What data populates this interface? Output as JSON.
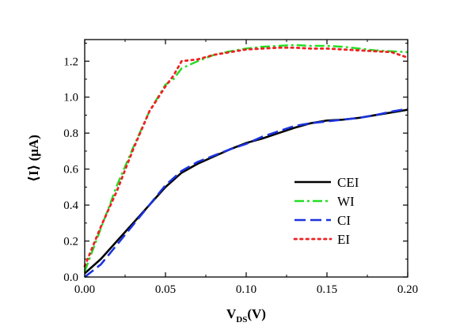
{
  "chart_data": {
    "type": "line",
    "xlabel_main": "V",
    "xlabel_sub": "DS",
    "xlabel_unit": "(V)",
    "ylabel": "⟨I⟩ (μA)",
    "xlim": [
      0.0,
      0.2
    ],
    "ylim": [
      0.0,
      1.32
    ],
    "x_ticks": [
      0.0,
      0.05,
      0.1,
      0.15,
      0.2
    ],
    "x_tick_labels": [
      "0.00",
      "0.05",
      "0.10",
      "0.15",
      "0.20"
    ],
    "y_ticks": [
      0.0,
      0.2,
      0.4,
      0.6,
      0.8,
      1.0,
      1.2
    ],
    "y_tick_labels": [
      "0.0",
      "0.2",
      "0.4",
      "0.6",
      "0.8",
      "1.0",
      "1.2"
    ],
    "legend_position": "center-right",
    "series": [
      {
        "name": "CEI",
        "color": "#000000",
        "style": "solid",
        "x": [
          0.0,
          0.01,
          0.02,
          0.03,
          0.04,
          0.05,
          0.06,
          0.07,
          0.08,
          0.09,
          0.1,
          0.11,
          0.12,
          0.13,
          0.14,
          0.15,
          0.16,
          0.17,
          0.18,
          0.19,
          0.2
        ],
        "y": [
          0.02,
          0.1,
          0.2,
          0.3,
          0.4,
          0.5,
          0.58,
          0.63,
          0.67,
          0.71,
          0.745,
          0.77,
          0.8,
          0.83,
          0.855,
          0.87,
          0.875,
          0.885,
          0.9,
          0.915,
          0.93
        ]
      },
      {
        "name": "WI",
        "color": "#22dd22",
        "style": "dashdot",
        "x": [
          0.0,
          0.01,
          0.02,
          0.03,
          0.04,
          0.05,
          0.055,
          0.06,
          0.07,
          0.08,
          0.09,
          0.1,
          0.11,
          0.12,
          0.13,
          0.14,
          0.15,
          0.16,
          0.17,
          0.18,
          0.19,
          0.2
        ],
        "y": [
          0.03,
          0.27,
          0.51,
          0.72,
          0.92,
          1.07,
          1.1,
          1.16,
          1.2,
          1.235,
          1.255,
          1.27,
          1.28,
          1.285,
          1.29,
          1.285,
          1.285,
          1.28,
          1.27,
          1.26,
          1.255,
          1.25
        ]
      },
      {
        "name": "CI",
        "color": "#1a33dd",
        "style": "dashed",
        "x": [
          0.0,
          0.01,
          0.02,
          0.03,
          0.04,
          0.05,
          0.06,
          0.07,
          0.08,
          0.09,
          0.1,
          0.11,
          0.12,
          0.13,
          0.14,
          0.15,
          0.16,
          0.17,
          0.18,
          0.19,
          0.2
        ],
        "y": [
          0.0,
          0.07,
          0.18,
          0.29,
          0.4,
          0.51,
          0.59,
          0.64,
          0.675,
          0.71,
          0.74,
          0.78,
          0.81,
          0.84,
          0.855,
          0.865,
          0.875,
          0.885,
          0.9,
          0.92,
          0.935
        ]
      },
      {
        "name": "EI",
        "color": "#ee2222",
        "style": "dotted",
        "x": [
          0.0,
          0.01,
          0.02,
          0.03,
          0.04,
          0.05,
          0.055,
          0.06,
          0.07,
          0.08,
          0.09,
          0.1,
          0.11,
          0.12,
          0.13,
          0.14,
          0.15,
          0.16,
          0.17,
          0.18,
          0.19,
          0.2
        ],
        "y": [
          0.06,
          0.28,
          0.48,
          0.71,
          0.92,
          1.06,
          1.12,
          1.2,
          1.21,
          1.235,
          1.25,
          1.265,
          1.27,
          1.275,
          1.275,
          1.27,
          1.27,
          1.265,
          1.26,
          1.255,
          1.25,
          1.22
        ]
      }
    ]
  }
}
